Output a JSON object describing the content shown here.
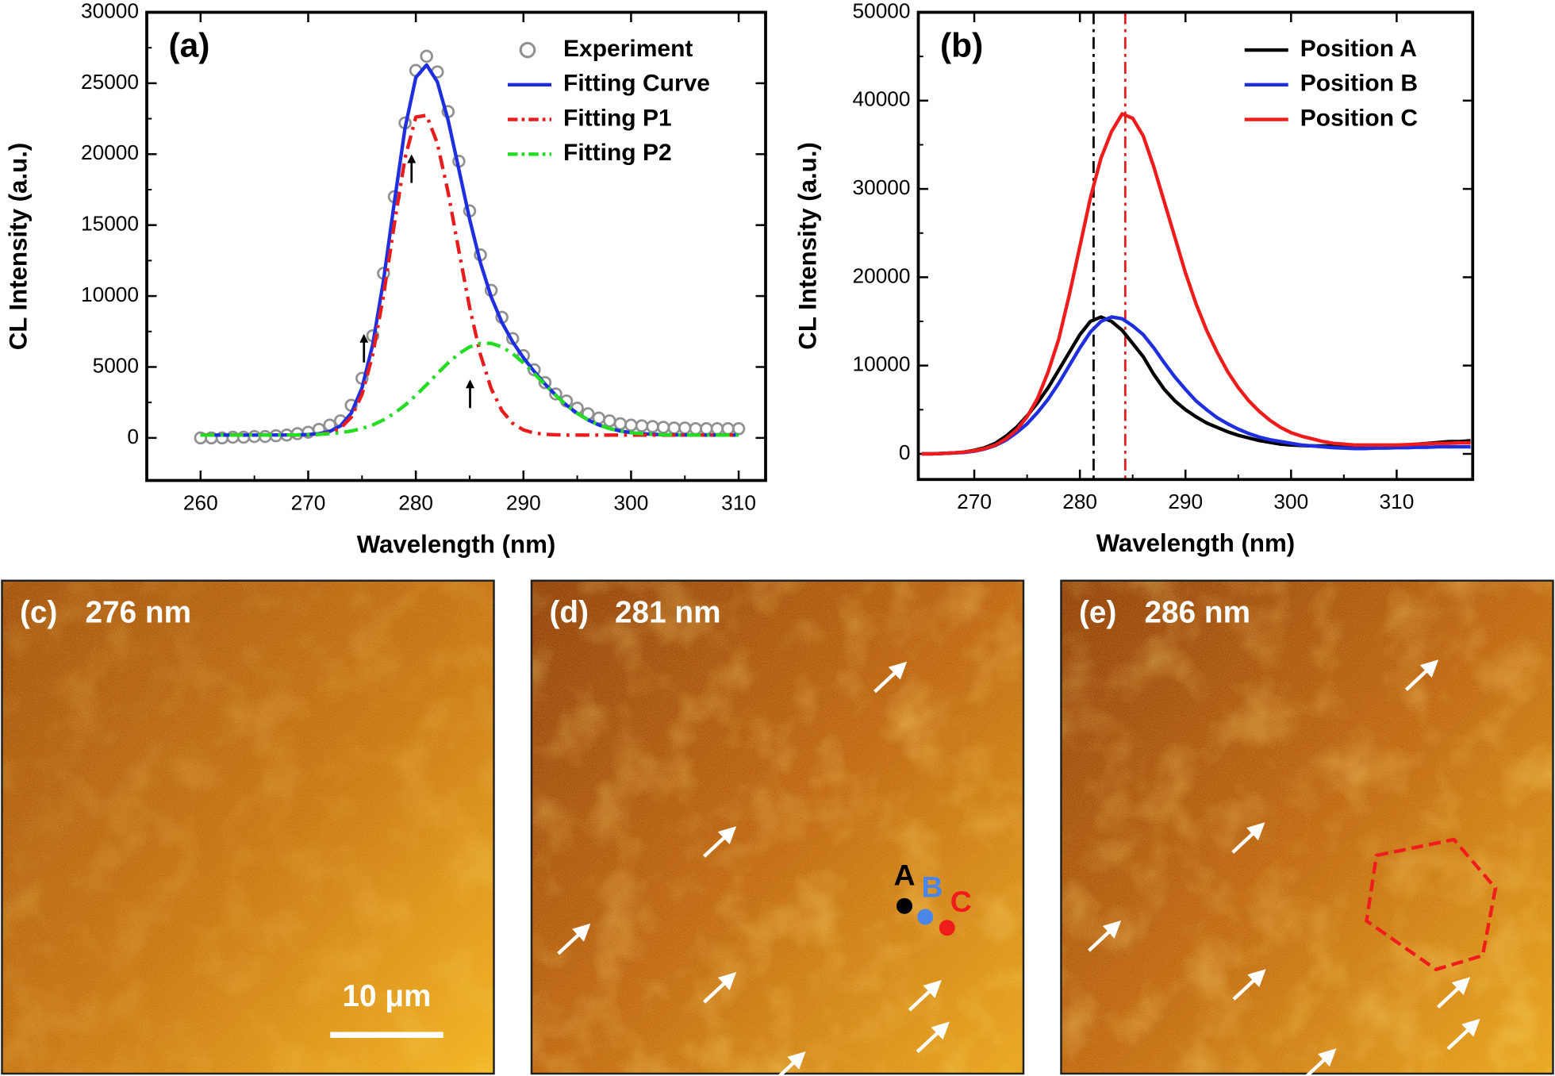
{
  "chart_data": [
    {
      "type": "line",
      "panel_label": "(a)",
      "x_label": "Wavelength (nm)",
      "y_label": "CL Intensity (a.u.)",
      "xlim": [
        255,
        312.5
      ],
      "ylim": [
        -3000,
        30000
      ],
      "xticks": [
        260,
        270,
        280,
        290,
        300,
        310
      ],
      "yticks": [
        0,
        5000,
        10000,
        15000,
        20000,
        25000,
        30000
      ],
      "legend": "upper right",
      "x": [
        260,
        261,
        262,
        263,
        264,
        265,
        266,
        267,
        268,
        269,
        270,
        271,
        272,
        273,
        274,
        275,
        276,
        277,
        278,
        279,
        280,
        281,
        282,
        283,
        284,
        285,
        286,
        287,
        288,
        289,
        290,
        291,
        292,
        293,
        294,
        295,
        296,
        297,
        298,
        299,
        300,
        301,
        302,
        303,
        304,
        305,
        306,
        307,
        308,
        309,
        310
      ],
      "series": [
        {
          "name": "Experiment",
          "color": "#909090",
          "marker": "circle",
          "values": [
            0,
            0,
            0,
            50,
            50,
            100,
            100,
            150,
            200,
            300,
            400,
            600,
            900,
            1200,
            2300,
            4200,
            7200,
            11600,
            17000,
            22200,
            25900,
            26900,
            25800,
            23000,
            19500,
            16000,
            12900,
            10400,
            8500,
            7000,
            5800,
            4800,
            3900,
            3100,
            2600,
            2100,
            1700,
            1400,
            1200,
            1000,
            900,
            850,
            800,
            750,
            700,
            700,
            650,
            650,
            650,
            650,
            650
          ]
        },
        {
          "name": "Fitting Curve",
          "color": "#1f2fe0",
          "dash": "solid",
          "values": [
            200,
            200,
            200,
            200,
            200,
            201,
            202,
            203,
            207,
            215,
            240,
            300,
            458,
            851,
            1742,
            3524,
            6601,
            11112,
            16584,
            21850,
            25404,
            26289,
            25097,
            22399,
            18927,
            15411,
            12354,
            9945,
            8137,
            6763,
            5650,
            4680,
            3801,
            3010,
            2310,
            1732,
            1269,
            915,
            661,
            486,
            370,
            297,
            253,
            228,
            214,
            207,
            203,
            201,
            201,
            200,
            200
          ]
        },
        {
          "name": "Fitting P1",
          "color": "#e81c1c",
          "dash": "dash-dot",
          "values": [
            200,
            200,
            200,
            200,
            200,
            200,
            200,
            200,
            200,
            200,
            212,
            247,
            361,
            681,
            1456,
            3063,
            5886,
            10043,
            15052,
            19740,
            22612,
            22740,
            20761,
            17311,
            13191,
            9197,
            5886,
            3477,
            1923,
            1027,
            562,
            344,
            252,
            218,
            200,
            200,
            200,
            200,
            200,
            200,
            200,
            200,
            200,
            200,
            200,
            200,
            200,
            200,
            200,
            200,
            200
          ]
        },
        {
          "name": "Fitting P2",
          "color": "#22dd22",
          "dash": "dash-dot",
          "values": [
            200,
            200,
            200,
            200,
            200,
            201,
            202,
            203,
            207,
            215,
            228,
            253,
            297,
            370,
            486,
            661,
            915,
            1269,
            1732,
            2310,
            2992,
            3749,
            4536,
            5288,
            5936,
            6414,
            6668,
            6668,
            6414,
            5936,
            5288,
            4536,
            3749,
            2992,
            2310,
            1732,
            1269,
            915,
            661,
            486,
            370,
            297,
            253,
            228,
            214,
            207,
            203,
            201,
            201,
            200,
            200
          ]
        }
      ]
    },
    {
      "type": "line",
      "panel_label": "(b)",
      "x_label": "Wavelength (nm)",
      "y_label": "CL Intensity (a.u.)",
      "xlim": [
        264.7,
        317.2
      ],
      "ylim": [
        -2900,
        50000
      ],
      "xticks": [
        270,
        280,
        290,
        300,
        310
      ],
      "yticks": [
        0,
        10000,
        20000,
        30000,
        40000,
        50000
      ],
      "legend": "upper right",
      "vlines": [
        {
          "x": 281.3,
          "color": "#000000"
        },
        {
          "x": 284.3,
          "color": "#e81c1c"
        }
      ],
      "x": [
        265,
        266,
        267,
        268,
        269,
        270,
        271,
        272,
        273,
        274,
        275,
        276,
        277,
        278,
        279,
        280,
        281,
        282,
        283,
        284,
        285,
        286,
        287,
        288,
        289,
        290,
        291,
        292,
        293,
        294,
        295,
        296,
        297,
        298,
        299,
        300,
        301,
        302,
        303,
        304,
        305,
        306,
        307,
        308,
        309,
        310,
        311,
        312,
        313,
        314,
        315,
        316,
        317
      ],
      "series": [
        {
          "name": "Position A",
          "color": "#000000",
          "dash": "solid",
          "values": [
            0,
            0,
            50,
            100,
            200,
            400,
            700,
            1200,
            2000,
            3000,
            4300,
            5800,
            7500,
            9500,
            11500,
            13500,
            15000,
            15500,
            15000,
            14000,
            12500,
            11000,
            9000,
            7300,
            6000,
            5000,
            4200,
            3500,
            3000,
            2500,
            2100,
            1800,
            1500,
            1300,
            1100,
            1000,
            950,
            900,
            900,
            900,
            900,
            850,
            850,
            900,
            900,
            900,
            1000,
            1100,
            1200,
            1300,
            1400,
            1400,
            1500
          ]
        },
        {
          "name": "Position B",
          "color": "#1f2fe0",
          "dash": "solid",
          "values": [
            0,
            0,
            50,
            100,
            150,
            300,
            550,
            950,
            1550,
            2400,
            3400,
            4700,
            6200,
            8000,
            10000,
            12000,
            13800,
            15000,
            15500,
            15300,
            14500,
            13500,
            12000,
            10300,
            8700,
            7300,
            6000,
            5000,
            4100,
            3400,
            2800,
            2300,
            1900,
            1600,
            1400,
            1200,
            1000,
            900,
            800,
            700,
            650,
            600,
            600,
            650,
            650,
            700,
            700,
            750,
            750,
            800,
            800,
            800,
            800
          ]
        },
        {
          "name": "Position C",
          "color": "#f01c1c",
          "dash": "solid",
          "values": [
            0,
            0,
            50,
            100,
            200,
            350,
            600,
            1000,
            1700,
            2700,
            4200,
            6300,
            9300,
            13000,
            18000,
            23500,
            29000,
            33500,
            36500,
            38500,
            38000,
            36000,
            32500,
            28500,
            24500,
            20500,
            17000,
            14000,
            11500,
            9300,
            7500,
            6000,
            4800,
            3800,
            3000,
            2400,
            2000,
            1700,
            1400,
            1200,
            1100,
            1000,
            1000,
            1000,
            1000,
            1000,
            1050,
            1100,
            1150,
            1200,
            1200,
            1250,
            1250
          ]
        }
      ]
    }
  ],
  "image_panels": [
    {
      "label": "(c)",
      "caption": "276 nm",
      "scale_bar": "10 μm"
    },
    {
      "label": "(d)",
      "caption": "281 nm",
      "points": [
        "A",
        "B",
        "C"
      ]
    },
    {
      "label": "(e)",
      "caption": "286 nm"
    }
  ]
}
